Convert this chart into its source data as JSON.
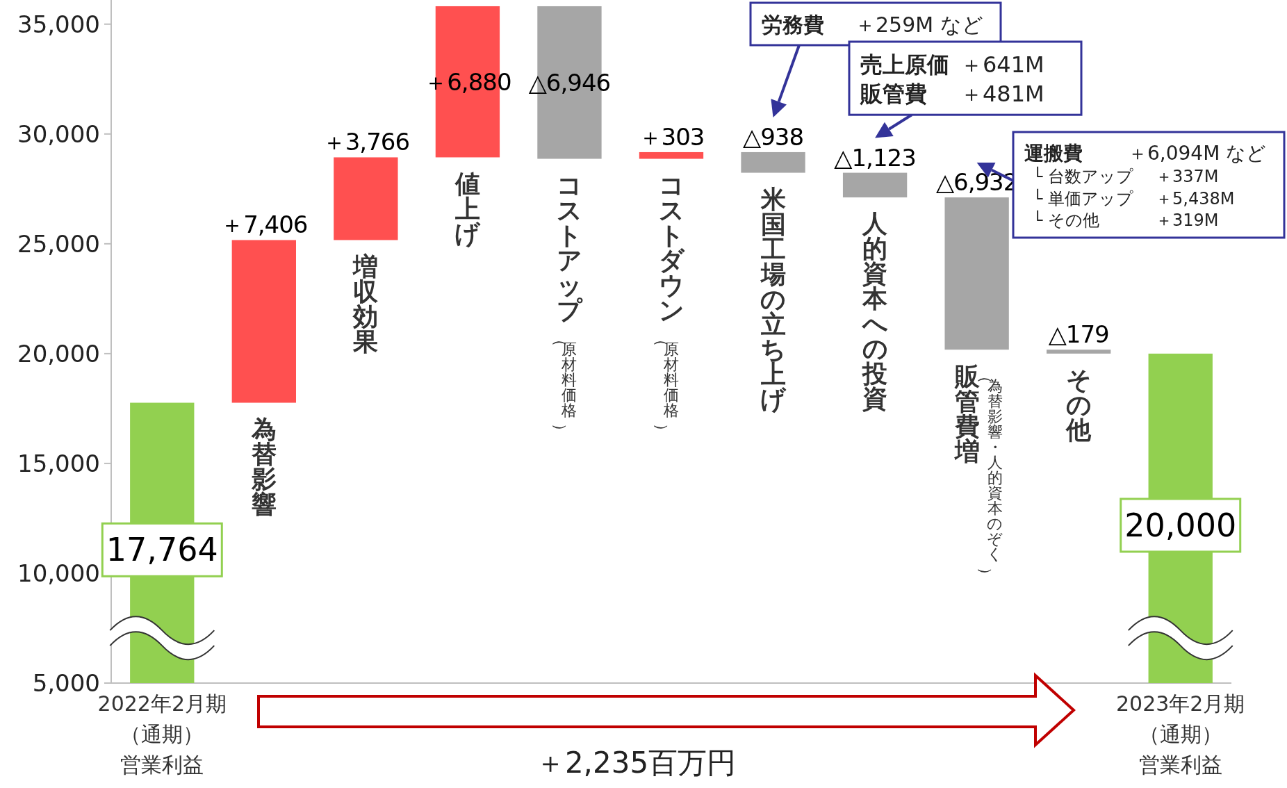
{
  "chart_data": {
    "type": "bar",
    "categories": [
      "2022年2月期（通期）営業利益",
      "為替影響",
      "増収効果",
      "値上げ",
      "コストアップ（原材料価格）",
      "コストダウン（原材料価格）",
      "米国工場の立ち上げ",
      "人的資本への投資",
      "販管費増（為替影響・人的資本のぞく）",
      "その他",
      "2023年2月期（通期）営業利益"
    ],
    "values": [
      17764,
      7406,
      3766,
      6880,
      -6946,
      303,
      -938,
      -1123,
      -6932,
      -179,
      20000
    ],
    "base": [
      null,
      17764,
      25170,
      28936,
      35816,
      28870,
      29173,
      28235,
      27112,
      20180,
      null
    ],
    "colors": [
      "#92d050",
      "#ff5050",
      "#ff5050",
      "#ff5050",
      "#a6a6a6",
      "#ff5050",
      "#a6a6a6",
      "#a6a6a6",
      "#a6a6a6",
      "#a6a6a6",
      "#92d050"
    ],
    "value_labels": [
      "17,764",
      "＋7,406",
      "＋3,766",
      "＋6,880",
      "△6,946",
      "＋303",
      "△938",
      "△1,123",
      "△6,932",
      "△179",
      "20,000"
    ],
    "ylim": [
      5000,
      36100
    ],
    "yticks": [
      {
        "value": 5000,
        "label": "5,000"
      },
      {
        "value": 10000,
        "label": "10,000"
      },
      {
        "value": 15000,
        "label": "15,000"
      },
      {
        "value": 20000,
        "label": "20,000"
      },
      {
        "value": 25000,
        "label": "25,000"
      },
      {
        "value": 30000,
        "label": "30,000"
      },
      {
        "value": 35000,
        "label": "35,000"
      }
    ],
    "grid": false,
    "annotations": [
      "＋2,235百万円",
      "労務費　＋259M など",
      "売上原価　＋641M",
      "販管費　＋481M",
      "運搬費　＋6,094M など",
      "└ 台数アップ　＋337M",
      "└ 単価アップ　＋5,438M",
      "└ その他　＋319M"
    ]
  }
}
